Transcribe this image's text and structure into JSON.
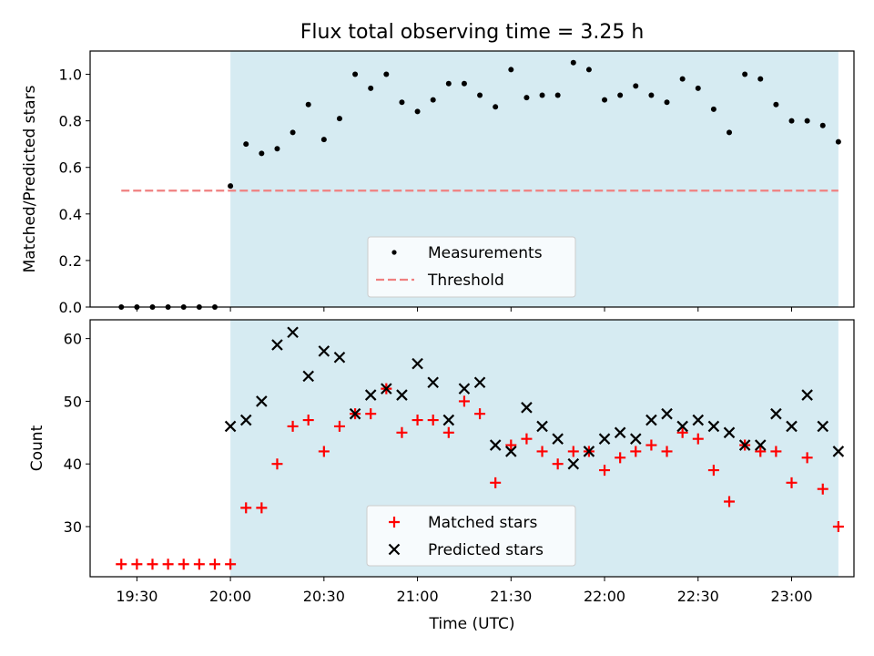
{
  "chart_data": [
    {
      "type": "scatter",
      "title": "Flux total observing time = 3.25 h",
      "ylabel": "Matched/Predicted stars",
      "ylim": [
        0,
        1.1
      ],
      "yticks": [
        "0.0",
        "0.2",
        "0.4",
        "0.6",
        "0.8",
        "1.0"
      ],
      "shared_x_axis": "Time (UTC)",
      "shaded_region": {
        "x_start": "20:00",
        "x_end": "23:15",
        "color": "#add8e6"
      },
      "series": [
        {
          "name": "Measurements",
          "marker": "dot",
          "color": "#000000",
          "x": [
            "19:25",
            "19:30",
            "19:35",
            "19:40",
            "19:45",
            "19:50",
            "19:55",
            "20:00",
            "20:05",
            "20:10",
            "20:15",
            "20:20",
            "20:25",
            "20:30",
            "20:35",
            "20:40",
            "20:45",
            "20:50",
            "20:55",
            "21:00",
            "21:05",
            "21:10",
            "21:15",
            "21:20",
            "21:25",
            "21:30",
            "21:35",
            "21:40",
            "21:45",
            "21:50",
            "21:55",
            "22:00",
            "22:05",
            "22:10",
            "22:15",
            "22:20",
            "22:25",
            "22:30",
            "22:35",
            "22:40",
            "22:45",
            "22:50",
            "22:55",
            "23:00",
            "23:05",
            "23:10",
            "23:15"
          ],
          "values": [
            0.0,
            0.0,
            0.0,
            0.0,
            0.0,
            0.0,
            0.0,
            0.52,
            0.7,
            0.66,
            0.68,
            0.75,
            0.87,
            0.72,
            0.81,
            1.0,
            0.94,
            1.0,
            0.88,
            0.84,
            0.89,
            0.96,
            0.96,
            0.91,
            0.86,
            1.02,
            0.9,
            0.91,
            0.91,
            1.05,
            1.02,
            0.89,
            0.91,
            0.95,
            0.91,
            0.88,
            0.98,
            0.94,
            0.85,
            0.75,
            1.0,
            0.98,
            0.87,
            0.8,
            0.8,
            0.78,
            0.71
          ]
        },
        {
          "name": "Threshold",
          "marker": "dashed-line",
          "color": "#f08080",
          "x": [
            "19:25",
            "23:15"
          ],
          "values": [
            0.5,
            0.5
          ]
        }
      ],
      "legend": {
        "position": "lower-center"
      }
    },
    {
      "type": "scatter",
      "xlabel": "Time (UTC)",
      "ylabel": "Count",
      "ylim": [
        22,
        63
      ],
      "yticks": [
        "30",
        "40",
        "50",
        "60"
      ],
      "xticks": [
        "19:30",
        "20:00",
        "20:30",
        "21:00",
        "21:30",
        "22:00",
        "22:30",
        "23:00"
      ],
      "xlim": [
        "19:15",
        "23:20"
      ],
      "shaded_region": {
        "x_start": "20:00",
        "x_end": "23:15",
        "color": "#add8e6"
      },
      "series": [
        {
          "name": "Matched stars",
          "marker": "plus",
          "color": "#ff0000",
          "x": [
            "19:25",
            "19:30",
            "19:35",
            "19:40",
            "19:45",
            "19:50",
            "19:55",
            "20:00",
            "20:05",
            "20:10",
            "20:15",
            "20:20",
            "20:25",
            "20:30",
            "20:35",
            "20:40",
            "20:45",
            "20:50",
            "20:55",
            "21:00",
            "21:05",
            "21:10",
            "21:15",
            "21:20",
            "21:25",
            "21:30",
            "21:35",
            "21:40",
            "21:45",
            "21:50",
            "21:55",
            "22:00",
            "22:05",
            "22:10",
            "22:15",
            "22:20",
            "22:25",
            "22:30",
            "22:35",
            "22:40",
            "22:45",
            "22:50",
            "22:55",
            "23:00",
            "23:05",
            "23:10",
            "23:15"
          ],
          "values": [
            24,
            24,
            24,
            24,
            24,
            24,
            24,
            24,
            33,
            33,
            40,
            46,
            47,
            42,
            46,
            48,
            48,
            52,
            45,
            47,
            47,
            45,
            50,
            48,
            37,
            43,
            44,
            42,
            40,
            42,
            42,
            39,
            41,
            42,
            43,
            42,
            45,
            44,
            39,
            34,
            43,
            42,
            42,
            37,
            41,
            36,
            30
          ]
        },
        {
          "name": "Predicted stars",
          "marker": "x",
          "color": "#000000",
          "x": [
            "20:00",
            "20:05",
            "20:10",
            "20:15",
            "20:20",
            "20:25",
            "20:30",
            "20:35",
            "20:40",
            "20:45",
            "20:50",
            "20:55",
            "21:00",
            "21:05",
            "21:10",
            "21:15",
            "21:20",
            "21:25",
            "21:30",
            "21:35",
            "21:40",
            "21:45",
            "21:50",
            "21:55",
            "22:00",
            "22:05",
            "22:10",
            "22:15",
            "22:20",
            "22:25",
            "22:30",
            "22:35",
            "22:40",
            "22:45",
            "22:50",
            "22:55",
            "23:00",
            "23:05",
            "23:10",
            "23:15"
          ],
          "values": [
            46,
            47,
            50,
            59,
            61,
            54,
            58,
            57,
            48,
            51,
            52,
            51,
            56,
            53,
            47,
            52,
            53,
            43,
            42,
            49,
            46,
            44,
            40,
            42,
            44,
            45,
            44,
            47,
            48,
            46,
            47,
            46,
            45,
            43,
            43,
            48,
            46,
            51,
            46,
            42
          ]
        }
      ],
      "legend": {
        "position": "lower-center"
      }
    }
  ]
}
